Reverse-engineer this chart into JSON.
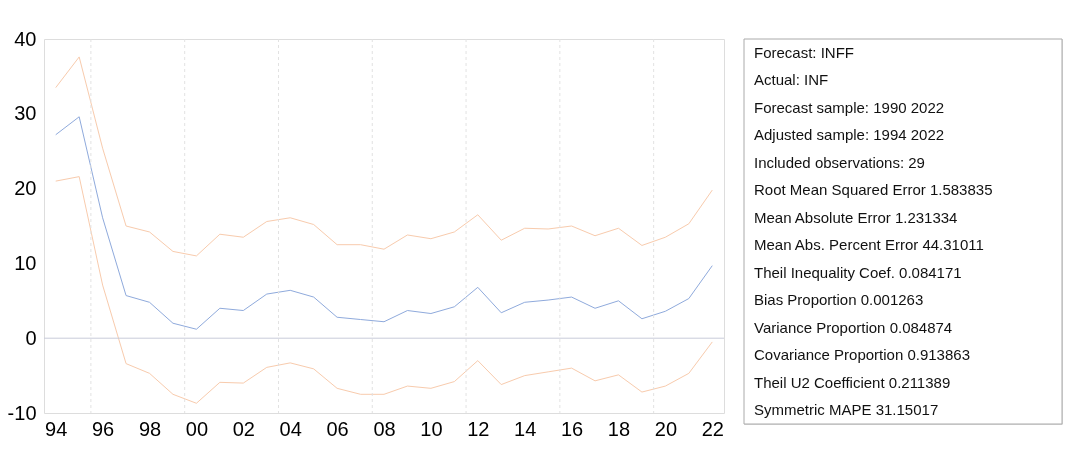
{
  "chart_data": {
    "type": "line",
    "x": [
      1994,
      1995,
      1996,
      1997,
      1998,
      1999,
      2000,
      2001,
      2002,
      2003,
      2004,
      2005,
      2006,
      2007,
      2008,
      2009,
      2010,
      2011,
      2012,
      2013,
      2014,
      2015,
      2016,
      2017,
      2018,
      2019,
      2020,
      2021,
      2022
    ],
    "series": [
      {
        "color": "#f8cbad",
        "values": [
          33.5,
          37.6,
          25.4,
          15.0,
          14.2,
          11.6,
          11.0,
          13.9,
          13.5,
          15.6,
          16.1,
          15.2,
          12.5,
          12.5,
          11.9,
          13.8,
          13.3,
          14.2,
          16.5,
          13.1,
          14.7,
          14.6,
          15.0,
          13.7,
          14.7,
          12.4,
          13.5,
          15.3,
          19.8
        ]
      },
      {
        "color": "#8faadc",
        "values": [
          27.2,
          29.6,
          16.1,
          5.7,
          4.8,
          2.0,
          1.2,
          4.0,
          3.7,
          5.9,
          6.4,
          5.5,
          2.8,
          2.5,
          2.2,
          3.7,
          3.3,
          4.2,
          6.8,
          3.4,
          4.8,
          5.1,
          5.5,
          4.0,
          5.0,
          2.6,
          3.6,
          5.3,
          9.7
        ]
      },
      {
        "color": "#f8cbad",
        "values": [
          21.0,
          21.6,
          7.1,
          -3.4,
          -4.7,
          -7.5,
          -8.7,
          -5.9,
          -6.0,
          -3.9,
          -3.3,
          -4.1,
          -6.7,
          -7.5,
          -7.5,
          -6.4,
          -6.7,
          -5.8,
          -3.0,
          -6.2,
          -5.0,
          -4.5,
          -4.0,
          -5.7,
          -4.9,
          -7.2,
          -6.4,
          -4.7,
          -0.5
        ]
      }
    ],
    "xlim": [
      1993.5,
      2022.5
    ],
    "xticks": [
      {
        "value": 1994,
        "label": "94"
      },
      {
        "value": 1995.5,
        "label": null
      },
      {
        "value": 1996,
        "label": "96"
      },
      {
        "value": 1998,
        "label": "98"
      },
      {
        "value": 1999.5,
        "label": null
      },
      {
        "value": 2000,
        "label": "00"
      },
      {
        "value": 2002,
        "label": "02"
      },
      {
        "value": 2003.5,
        "label": null
      },
      {
        "value": 2004,
        "label": "04"
      },
      {
        "value": 2006,
        "label": "06"
      },
      {
        "value": 2007.5,
        "label": null
      },
      {
        "value": 2008,
        "label": "08"
      },
      {
        "value": 2010,
        "label": "10"
      },
      {
        "value": 2011.5,
        "label": null
      },
      {
        "value": 2012,
        "label": "12"
      },
      {
        "value": 2014,
        "label": "14"
      },
      {
        "value": 2015.5,
        "label": null
      },
      {
        "value": 2016,
        "label": "16"
      },
      {
        "value": 2018,
        "label": "18"
      },
      {
        "value": 2019.5,
        "label": null
      },
      {
        "value": 2020,
        "label": "20"
      },
      {
        "value": 2022,
        "label": "22"
      }
    ],
    "ylim": [
      -10,
      40
    ],
    "yticks": [
      -10,
      0,
      10,
      20,
      30,
      40
    ],
    "grid": "x",
    "ref_lines": [
      {
        "axis": "y",
        "value": 0,
        "color": "#c9cbd9"
      }
    ],
    "annotations": [
      "Forecast: INFF",
      "Actual: INF",
      "Forecast sample: 1990 2022",
      "Adjusted sample: 1994 2022",
      "Included observations: 29",
      "Root Mean Squared Error     1.583835",
      "Mean Absolute Error     1.231334",
      "Mean Abs. Percent Error     44.31011",
      "Theil Inequality Coef.  0.084171",
      "Bias Proportion     0.001263",
      "Variance Proportion     0.084874",
      "Covariance Proportion     0.913863",
      "Theil U2 Coefficient     0.211389",
      "Symmetric MAPE     31.15017"
    ]
  }
}
